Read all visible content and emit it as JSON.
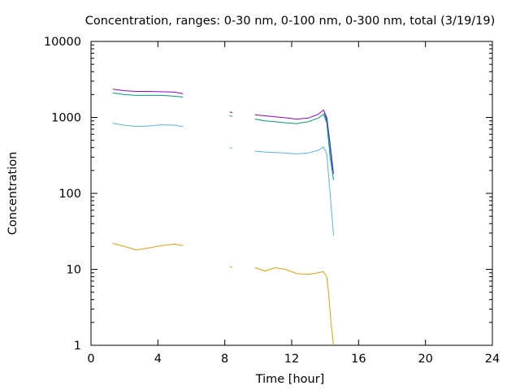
{
  "chart_data": {
    "type": "line",
    "title": "Concentration, ranges: 0-30 nm, 0-100 nm, 0-300 nm, total (3/19/19)",
    "xlabel": "Time [hour]",
    "ylabel": "Concentration",
    "xlim": [
      0,
      24
    ],
    "ylim": [
      1,
      10000
    ],
    "yscale": "log",
    "grid": false,
    "legend": "none",
    "x_ticks": [
      0,
      4,
      8,
      12,
      16,
      20,
      24
    ],
    "x_tick_labels": [
      "0",
      "4",
      "8",
      "12",
      "16",
      "20",
      "24"
    ],
    "y_ticks": [
      1,
      10,
      100,
      1000,
      10000
    ],
    "y_tick_labels": [
      "1",
      "10",
      "100",
      "1000",
      "10000"
    ],
    "series": [
      {
        "color": "#e69f00",
        "segments": [
          [
            [
              1.3,
              22
            ],
            [
              2.0,
              20
            ],
            [
              2.7,
              18
            ],
            [
              3.4,
              19
            ],
            [
              4.2,
              20.5
            ],
            [
              5.0,
              21.5
            ],
            [
              5.5,
              20.5
            ]
          ],
          [
            [
              8.3,
              11
            ],
            [
              8.45,
              10.5
            ]
          ],
          [
            [
              9.8,
              10.5
            ],
            [
              10.4,
              9.5
            ],
            [
              11.0,
              10.5
            ],
            [
              11.6,
              10.0
            ],
            [
              12.3,
              8.8
            ],
            [
              13.0,
              8.6
            ],
            [
              13.6,
              9.0
            ],
            [
              13.9,
              9.3
            ],
            [
              14.1,
              8.0
            ],
            [
              14.2,
              5.0
            ],
            [
              14.35,
              2.0
            ],
            [
              14.5,
              1.0
            ]
          ]
        ]
      },
      {
        "color": "#56b4e9",
        "segments": [
          [
            [
              1.3,
              840
            ],
            [
              2.0,
              790
            ],
            [
              2.7,
              760
            ],
            [
              3.4,
              770
            ],
            [
              4.2,
              800
            ],
            [
              5.0,
              790
            ],
            [
              5.5,
              760
            ]
          ],
          [
            [
              8.3,
              400
            ],
            [
              8.45,
              390
            ]
          ],
          [
            [
              9.8,
              360
            ],
            [
              10.4,
              350
            ],
            [
              11.0,
              345
            ],
            [
              11.6,
              340
            ],
            [
              12.3,
              330
            ],
            [
              13.0,
              340
            ],
            [
              13.6,
              370
            ],
            [
              13.9,
              410
            ],
            [
              14.1,
              330
            ],
            [
              14.3,
              100
            ],
            [
              14.5,
              28
            ]
          ]
        ]
      },
      {
        "color": "#009e73",
        "segments": [
          [
            [
              1.3,
              2100
            ],
            [
              2.0,
              2000
            ],
            [
              2.7,
              1950
            ],
            [
              3.4,
              1950
            ],
            [
              4.2,
              1950
            ],
            [
              5.0,
              1900
            ],
            [
              5.5,
              1850
            ]
          ],
          [
            [
              8.3,
              1050
            ],
            [
              8.45,
              1030
            ]
          ],
          [
            [
              9.8,
              950
            ],
            [
              10.4,
              900
            ],
            [
              11.0,
              880
            ],
            [
              11.6,
              850
            ],
            [
              12.3,
              830
            ],
            [
              13.0,
              880
            ],
            [
              13.6,
              980
            ],
            [
              13.9,
              1100
            ],
            [
              14.1,
              850
            ],
            [
              14.3,
              300
            ],
            [
              14.5,
              150
            ]
          ]
        ]
      },
      {
        "color": "#9400d3",
        "segments": [
          [
            [
              1.3,
              2350
            ],
            [
              2.0,
              2250
            ],
            [
              2.7,
              2200
            ],
            [
              3.4,
              2200
            ],
            [
              4.2,
              2180
            ],
            [
              5.0,
              2150
            ],
            [
              5.5,
              2050
            ]
          ],
          [
            [
              8.3,
              1180
            ],
            [
              8.45,
              1160
            ]
          ],
          [
            [
              9.8,
              1080
            ],
            [
              10.4,
              1050
            ],
            [
              11.0,
              1020
            ],
            [
              11.6,
              990
            ],
            [
              12.3,
              950
            ],
            [
              13.0,
              980
            ],
            [
              13.6,
              1100
            ],
            [
              13.9,
              1250
            ],
            [
              14.1,
              1000
            ],
            [
              14.3,
              450
            ],
            [
              14.5,
              180
            ]
          ]
        ]
      },
      {
        "color": "#0072b2",
        "segments": [
          [
            [
              13.95,
              1150
            ],
            [
              14.1,
              900
            ],
            [
              14.25,
              500
            ],
            [
              14.45,
              200
            ]
          ]
        ]
      }
    ]
  }
}
